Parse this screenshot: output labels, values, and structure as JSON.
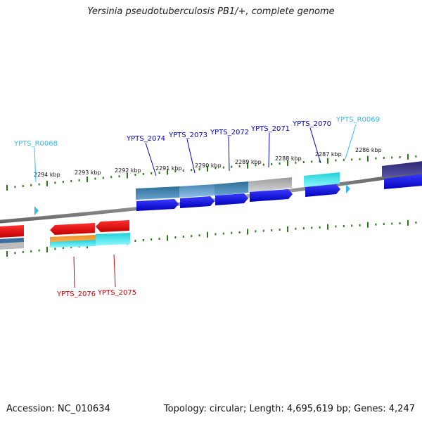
{
  "title": "Yersinia pseudotuberculosis PB1/+, complete genome",
  "footer": {
    "accession": "Accession: NC_010634",
    "topology": "Topology: circular; Length: 4,695,619 bp; Genes: 4,247"
  },
  "colors": {
    "forward_label": "#0000cc",
    "reverse_label": "#cc0000",
    "rna_label": "#33bbee",
    "tick": "#2a7a1a",
    "backbone": "#777777"
  },
  "kbp_labels": [
    "2294 kbp",
    "2293 kbp",
    "2292 kbp",
    "2291 kbp",
    "2290 kbp",
    "2289 kbp",
    "2288 kbp",
    "2287 kbp",
    "2286 kbp"
  ],
  "forward_genes": [
    {
      "label": "YPTS_2074",
      "color": "#0000cc"
    },
    {
      "label": "YPTS_2073",
      "color": "#0000cc"
    },
    {
      "label": "YPTS_2072",
      "color": "#0000cc"
    },
    {
      "label": "YPTS_2071",
      "color": "#0000cc"
    },
    {
      "label": "YPTS_2070",
      "color": "#0000cc"
    },
    {
      "label": "YPTS_R0069",
      "color": "#33bbee"
    },
    {
      "label": "YPTS_R0068",
      "color": "#33bbee"
    }
  ],
  "reverse_genes": [
    {
      "label": "YPTS_2076",
      "color": "#cc0000"
    },
    {
      "label": "YPTS_2075",
      "color": "#cc0000"
    }
  ]
}
